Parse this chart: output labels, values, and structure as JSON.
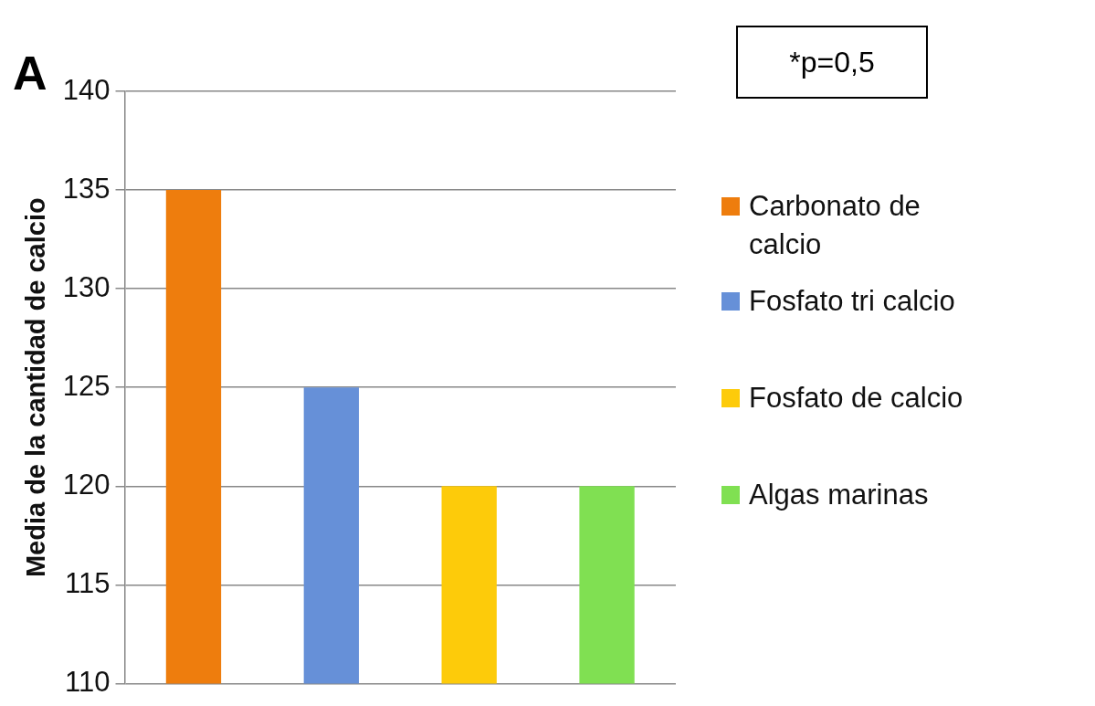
{
  "chart_data": {
    "type": "bar",
    "ylabel": "Media de la cantidad de calcio",
    "annotations": [
      "A",
      "*p=0,5"
    ],
    "categories": [
      null,
      null,
      null,
      null
    ],
    "series": [
      {
        "name": "Carbonato de calcio",
        "color": "#ee7d0d",
        "values": [
          135,
          null,
          null,
          null
        ]
      },
      {
        "name": "Fosfato tri calcio",
        "color": "#6690d8",
        "values": [
          null,
          125,
          null,
          null
        ]
      },
      {
        "name": "Fosfato de calcio",
        "color": "#fdcb0a",
        "values": [
          null,
          null,
          120,
          null
        ]
      },
      {
        "name": "Algas marinas",
        "color": "#80e052",
        "values": [
          null,
          null,
          null,
          120
        ]
      }
    ],
    "ylim": [
      110,
      140
    ],
    "yticks": [
      110,
      115,
      120,
      125,
      130,
      135,
      140
    ],
    "grid": "y",
    "legend": "right",
    "tick_labels": "y"
  }
}
